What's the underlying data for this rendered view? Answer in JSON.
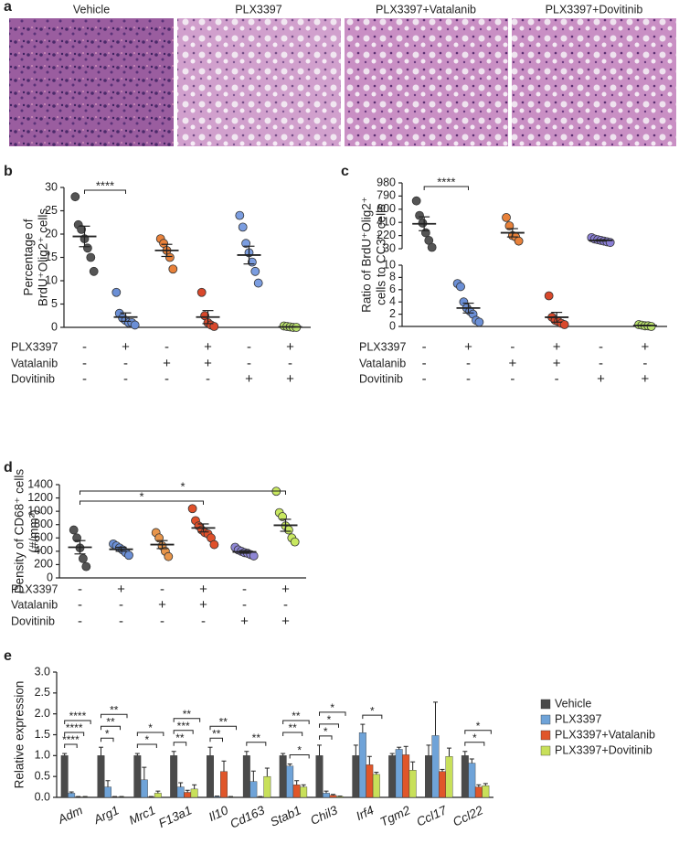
{
  "panel_a": {
    "label": "a",
    "image_titles": [
      "Vehicle",
      "PLX3397",
      "PLX3397+Vatalanib",
      "PLX3397+Dovitinib"
    ]
  },
  "chart_data": [
    {
      "type": "dot",
      "label": "b",
      "ylabel": [
        "Percentage of",
        "BrdU⁺Olig2⁺ cells"
      ],
      "ylim": [
        0,
        30
      ],
      "yticks": [
        0,
        5,
        10,
        15,
        20,
        25,
        30
      ],
      "groups": [
        {
          "color": "#555555",
          "values": [
            28,
            22,
            21,
            19,
            17,
            15,
            12
          ],
          "mean": 19.5,
          "sem": 2.2
        },
        {
          "color": "#6b8fd6",
          "values": [
            7.5,
            3,
            2,
            1.5,
            1,
            1,
            0.5
          ],
          "mean": 2.2,
          "sem": 0.9
        },
        {
          "color": "#e8813a",
          "values": [
            19,
            18,
            16.5,
            15,
            12.5
          ],
          "mean": 16.5,
          "sem": 1.3
        },
        {
          "color": "#d9482b",
          "values": [
            7.5,
            2.5,
            1,
            0.5,
            0.2
          ],
          "mean": 2.2,
          "sem": 1.4
        },
        {
          "color": "#7b9de0",
          "values": [
            24,
            21.5,
            18,
            16,
            14,
            12,
            9.5
          ],
          "mean": 15.5,
          "sem": 1.9
        },
        {
          "color": "#b8e06a",
          "values": [
            0.3,
            0.2,
            0.1,
            0,
            0
          ],
          "mean": 0.1,
          "sem": 0.05
        }
      ],
      "conditions": [
        {
          "name": "PLX3397",
          "signs": [
            "-",
            "+",
            "-",
            "+",
            "-",
            "+"
          ]
        },
        {
          "name": "Vatalanib",
          "signs": [
            "-",
            "-",
            "+",
            "+",
            "-",
            "-"
          ]
        },
        {
          "name": "Dovitinib",
          "signs": [
            "-",
            "-",
            "-",
            "-",
            "+",
            "+"
          ]
        }
      ],
      "significance": [
        {
          "groups": [
            0,
            1
          ],
          "label": "****"
        }
      ]
    },
    {
      "type": "broken_dot",
      "label": "c",
      "ylabel": [
        "Ratio of BrdU⁺Olig2⁺",
        "cells to CC3⁺ cells"
      ],
      "segments": [
        {
          "ylim": [
            0,
            10
          ],
          "yticks": [
            0,
            2,
            4,
            6,
            8,
            10
          ]
        },
        {
          "ylim": [
            30,
            980
          ],
          "yticks": [
            30,
            220,
            410,
            600,
            790,
            980
          ]
        }
      ],
      "groups": [
        {
          "color": "#555555",
          "values": [
            720,
            510,
            400,
            260,
            150,
            50
          ],
          "mean": 390,
          "sem": 100
        },
        {
          "color": "#6b8fd6",
          "values": [
            7,
            6.5,
            4,
            3,
            2.5,
            2,
            1,
            0.7
          ],
          "mean": 3,
          "sem": 0.8
        },
        {
          "color": "#e8813a",
          "values": [
            480,
            360,
            220,
            200,
            140
          ],
          "mean": 260,
          "sem": 60
        },
        {
          "color": "#d9482b",
          "values": [
            5,
            1.5,
            1,
            0.8,
            0.5,
            0.3
          ],
          "mean": 1.5,
          "sem": 0.8
        },
        {
          "color": "#8b7fd6",
          "values": [
            190,
            170,
            160,
            150,
            140,
            130,
            120
          ],
          "mean": 150,
          "sem": 10
        },
        {
          "color": "#b8e06a",
          "values": [
            0.3,
            0.2,
            0.1,
            0.1,
            0
          ],
          "mean": 0.15,
          "sem": 0.05
        }
      ],
      "conditions": [
        {
          "name": "PLX3397",
          "signs": [
            "-",
            "+",
            "-",
            "+",
            "-",
            "+"
          ]
        },
        {
          "name": "Vatalanib",
          "signs": [
            "-",
            "-",
            "+",
            "+",
            "-",
            "-"
          ]
        },
        {
          "name": "Dovitinib",
          "signs": [
            "-",
            "-",
            "-",
            "-",
            "+",
            "+"
          ]
        }
      ],
      "significance": [
        {
          "groups": [
            0,
            1
          ],
          "label": "****"
        }
      ]
    },
    {
      "type": "dot",
      "label": "d",
      "ylabel": [
        "Density of CD68⁺ cells",
        "(#/mm²)"
      ],
      "ylim": [
        0,
        1400
      ],
      "yticks": [
        0,
        200,
        400,
        600,
        800,
        1000,
        1200,
        1400
      ],
      "groups": [
        {
          "color": "#555555",
          "values": [
            720,
            600,
            450,
            290,
            170
          ],
          "mean": 460,
          "sem": 100
        },
        {
          "color": "#6b8fd6",
          "values": [
            510,
            480,
            450,
            420,
            380,
            340
          ],
          "mean": 430,
          "sem": 30
        },
        {
          "color": "#e8954a",
          "values": [
            680,
            600,
            480,
            400,
            320
          ],
          "mean": 500,
          "sem": 60
        },
        {
          "color": "#e0502a",
          "values": [
            1040,
            860,
            780,
            720,
            680,
            660,
            600,
            500
          ],
          "mean": 750,
          "sem": 60
        },
        {
          "color": "#8e86d4",
          "values": [
            460,
            420,
            400,
            380,
            370,
            350,
            330
          ],
          "mean": 390,
          "sem": 20
        },
        {
          "color": "#c8e860",
          "values": [
            1300,
            980,
            920,
            780,
            720,
            600,
            540
          ],
          "mean": 790,
          "sem": 90
        }
      ],
      "conditions": [
        {
          "name": "PLX3397",
          "signs": [
            "-",
            "+",
            "-",
            "+",
            "-",
            "+"
          ]
        },
        {
          "name": "Vatalanib",
          "signs": [
            "-",
            "-",
            "+",
            "+",
            "-",
            "-"
          ]
        },
        {
          "name": "Dovitinib",
          "signs": [
            "-",
            "-",
            "-",
            "-",
            "+",
            "+"
          ]
        }
      ],
      "significance": [
        {
          "groups": [
            0,
            3
          ],
          "label": "*"
        },
        {
          "groups": [
            0,
            5
          ],
          "label": "*"
        }
      ]
    },
    {
      "type": "grouped_bar",
      "label": "e",
      "ylabel": [
        "Relative expression"
      ],
      "ylim": [
        0,
        3
      ],
      "yticks": [
        {
          "value": 0,
          "label": "0.0"
        },
        0.5,
        {
          "value": 1,
          "label": "1.0"
        },
        1.5,
        {
          "value": 2,
          "label": "2.0"
        },
        2.5,
        {
          "value": 3,
          "label": "3.0"
        }
      ],
      "categories": [
        "Adm",
        "Arg1",
        "Mrc1",
        "F13a1",
        "Il10",
        "Cd163",
        "Stab1",
        "Chil3",
        "Irf4",
        "Tgm2",
        "Ccl17",
        "Ccl22"
      ],
      "series": [
        {
          "name": "Vehicle",
          "color": "#4a4a4a",
          "values": [
            1,
            1,
            1,
            1,
            1,
            1,
            1,
            1,
            1,
            1,
            1,
            1
          ],
          "errors": [
            0.05,
            0.2,
            0.05,
            0.1,
            0.2,
            0.1,
            0.05,
            0.25,
            0.25,
            0.05,
            0.25,
            0.1
          ]
        },
        {
          "name": "PLX3397",
          "color": "#6fa3d8",
          "values": [
            0.1,
            0.25,
            0.42,
            0.25,
            0.02,
            0.38,
            0.75,
            0.1,
            1.55,
            1.15,
            1.48,
            0.82
          ],
          "errors": [
            0.03,
            0.15,
            0.3,
            0.1,
            0.01,
            0.25,
            0.05,
            0.05,
            0.2,
            0.05,
            0.8,
            0.1
          ]
        },
        {
          "name": "PLX3397+Vatalanib",
          "color": "#e0562a",
          "values": [
            0.01,
            0.01,
            0.01,
            0.12,
            0.62,
            0.01,
            0.3,
            0.05,
            0.78,
            1.02,
            0.62,
            0.25
          ],
          "errors": [
            0.01,
            0.01,
            0.01,
            0.05,
            0.25,
            0.01,
            0.1,
            0.02,
            0.2,
            0.2,
            0.05,
            0.05
          ]
        },
        {
          "name": "PLX3397+Dovitinib",
          "color": "#c8e05a",
          "values": [
            0.01,
            0.01,
            0.1,
            0.2,
            0.01,
            0.5,
            0.25,
            0.02,
            0.55,
            0.65,
            0.98,
            0.28
          ],
          "errors": [
            0.01,
            0.01,
            0.05,
            0.1,
            0.01,
            0.2,
            0.05,
            0.01,
            0.05,
            0.2,
            0.2,
            0.05
          ]
        }
      ],
      "significance": [
        {
          "category": 0,
          "series": [
            0,
            1
          ],
          "label": "****"
        },
        {
          "category": 0,
          "series": [
            0,
            2
          ],
          "label": "****"
        },
        {
          "category": 0,
          "series": [
            0,
            3
          ],
          "label": "****"
        },
        {
          "category": 1,
          "series": [
            0,
            1
          ],
          "label": "*"
        },
        {
          "category": 1,
          "series": [
            0,
            2
          ],
          "label": "**"
        },
        {
          "category": 1,
          "series": [
            0,
            3
          ],
          "label": "**"
        },
        {
          "category": 2,
          "series": [
            0,
            2
          ],
          "label": "*"
        },
        {
          "category": 2,
          "series": [
            0,
            3
          ],
          "label": "*"
        },
        {
          "category": 3,
          "series": [
            0,
            1
          ],
          "label": "**"
        },
        {
          "category": 3,
          "series": [
            0,
            2
          ],
          "label": "***"
        },
        {
          "category": 3,
          "series": [
            0,
            3
          ],
          "label": "**"
        },
        {
          "category": 4,
          "series": [
            0,
            1
          ],
          "label": "**"
        },
        {
          "category": 4,
          "series": [
            0,
            3
          ],
          "label": "**"
        },
        {
          "category": 5,
          "series": [
            0,
            2
          ],
          "label": "**"
        },
        {
          "category": 6,
          "series": [
            1,
            3
          ],
          "label": "*"
        },
        {
          "category": 6,
          "series": [
            0,
            2
          ],
          "label": "**"
        },
        {
          "category": 6,
          "series": [
            0,
            3
          ],
          "label": "**"
        },
        {
          "category": 7,
          "series": [
            0,
            1
          ],
          "label": "*"
        },
        {
          "category": 7,
          "series": [
            0,
            2
          ],
          "label": "*"
        },
        {
          "category": 7,
          "series": [
            0,
            3
          ],
          "label": "*"
        },
        {
          "category": 8,
          "series": [
            1,
            3
          ],
          "label": "*"
        },
        {
          "category": 11,
          "series": [
            0,
            2
          ],
          "label": "*"
        },
        {
          "category": 11,
          "series": [
            0,
            3
          ],
          "label": "*"
        }
      ]
    }
  ]
}
